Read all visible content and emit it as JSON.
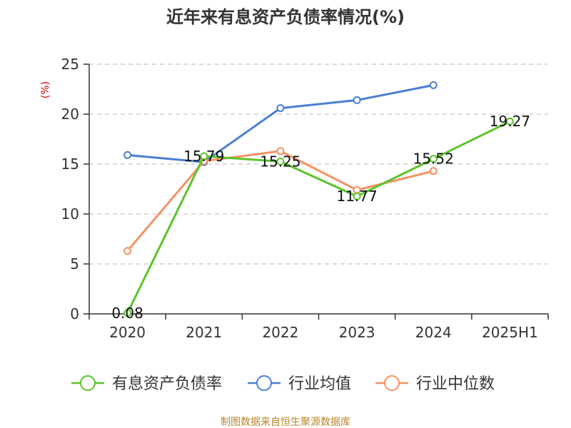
{
  "chart_data": {
    "type": "line",
    "title": "近年来有息资产负债率情况(%)",
    "ylabel": "(%)",
    "categories": [
      "2020",
      "2021",
      "2022",
      "2023",
      "2024",
      "2025H1"
    ],
    "ylim": [
      0,
      25
    ],
    "yticks": [
      0,
      5,
      10,
      15,
      20,
      25
    ],
    "grid": true,
    "legend_position": "bottom",
    "series": [
      {
        "name": "有息资产负债率",
        "color": "#5bc42a",
        "values": [
          0.08,
          15.79,
          15.25,
          11.77,
          15.52,
          19.27
        ],
        "labels": [
          "0.08",
          "15.79",
          "15.25",
          "11.77",
          "15.52",
          "19.27"
        ]
      },
      {
        "name": "行业均值",
        "color": "#4a7fd4",
        "values": [
          15.9,
          15.2,
          20.6,
          21.4,
          22.9,
          null
        ]
      },
      {
        "name": "行业中位数",
        "color": "#f59162",
        "values": [
          6.3,
          15.3,
          16.3,
          12.4,
          14.3,
          null
        ]
      }
    ]
  },
  "source_text": "制图数据来自恒生聚源数据库",
  "colors": {
    "ylabel": "#cc0000",
    "source": "#b8862a",
    "axis": "#333333",
    "grid": "#c8c8c8"
  }
}
